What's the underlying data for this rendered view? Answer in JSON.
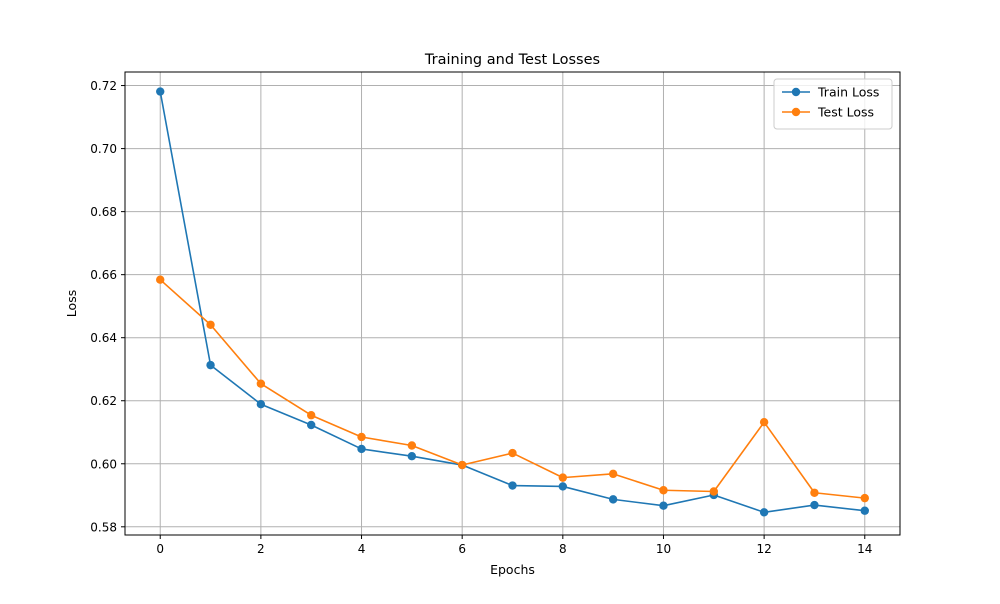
{
  "chart_data": {
    "type": "line",
    "title": "Training and Test Losses",
    "xlabel": "Epochs",
    "ylabel": "Loss",
    "x": [
      0,
      1,
      2,
      3,
      4,
      5,
      6,
      7,
      8,
      9,
      10,
      11,
      12,
      13,
      14
    ],
    "xlim": [
      -0.7,
      14.7
    ],
    "ylim": [
      0.5774,
      0.7243
    ],
    "xticks": [
      0,
      2,
      4,
      6,
      8,
      10,
      12,
      14
    ],
    "xtick_labels": [
      "0",
      "2",
      "4",
      "6",
      "8",
      "10",
      "12",
      "14"
    ],
    "yticks": [
      0.58,
      0.6,
      0.62,
      0.64,
      0.66,
      0.68,
      0.7,
      0.72
    ],
    "ytick_labels": [
      "0.58",
      "0.60",
      "0.62",
      "0.64",
      "0.66",
      "0.68",
      "0.70",
      "0.72"
    ],
    "grid": true,
    "legend_position": "top-right",
    "series": [
      {
        "name": "Train Loss",
        "color": "#1f77b4",
        "marker": "circle",
        "values": [
          0.7181,
          0.6313,
          0.6189,
          0.6123,
          0.6047,
          0.6024,
          0.5996,
          0.5931,
          0.5928,
          0.5887,
          0.5867,
          0.5901,
          0.5846,
          0.5869,
          0.5851
        ]
      },
      {
        "name": "Test Loss",
        "color": "#ff7f0e",
        "marker": "circle",
        "values": [
          0.6584,
          0.6441,
          0.6254,
          0.6154,
          0.6085,
          0.6058,
          0.5996,
          0.6034,
          0.5956,
          0.5968,
          0.5916,
          0.5912,
          0.6132,
          0.5908,
          0.5891
        ]
      }
    ]
  }
}
